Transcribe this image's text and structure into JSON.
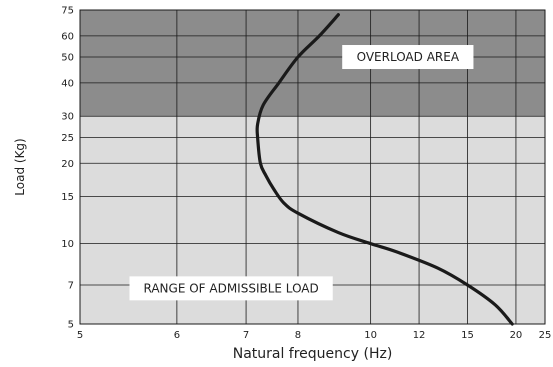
{
  "chart_data": {
    "type": "line",
    "xlabel": "Natural frequency (Hz)",
    "ylabel": "Load (Kg)",
    "xlim": [
      5,
      25
    ],
    "ylim": [
      5,
      75
    ],
    "xscale": "reciprocal",
    "yscale": "log",
    "x_ticks": [
      5,
      6,
      7,
      8,
      10,
      12,
      15,
      20,
      25
    ],
    "y_ticks": [
      5,
      7,
      10,
      15,
      20,
      25,
      30,
      40,
      50,
      60,
      75
    ],
    "grid": true,
    "series": [
      {
        "x": [
          19.5,
          17.5,
          15.0,
          13.0,
          11.0,
          10.0,
          9.0,
          8.0,
          7.7,
          7.5,
          7.35,
          7.25,
          7.2,
          7.2,
          7.3,
          7.6,
          8.0,
          8.5,
          9.0
        ],
        "y": [
          5,
          5.9,
          7,
          8.1,
          9.3,
          10,
          11,
          13,
          14.2,
          16,
          18,
          20,
          25,
          28,
          33,
          40,
          50,
          60,
          72
        ],
        "color": "#1a1a1a"
      }
    ],
    "areas": {
      "overload": {
        "label": "OVERLOAD AREA",
        "y_from": 30,
        "y_to": 75,
        "color": "#8c8c8c"
      },
      "admissible": {
        "label": "RANGE OF ADMISSIBLE LOAD",
        "y_from": 5,
        "y_to": 30,
        "color": "#dcdcdc"
      }
    }
  }
}
